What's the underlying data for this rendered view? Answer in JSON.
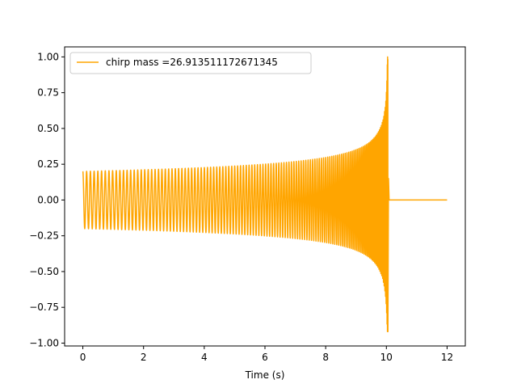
{
  "chart_data": {
    "type": "line",
    "title": "",
    "xlabel": "Time (s)",
    "ylabel": "",
    "xlim": [
      -0.6,
      12.6
    ],
    "ylim": [
      -1.02,
      1.07
    ],
    "x_ticks": [
      0,
      2,
      4,
      6,
      8,
      10,
      12
    ],
    "x_tick_labels": [
      "0",
      "2",
      "4",
      "6",
      "8",
      "10",
      "12"
    ],
    "y_ticks": [
      -1.0,
      -0.75,
      -0.5,
      -0.25,
      0.0,
      0.25,
      0.5,
      0.75,
      1.0
    ],
    "y_tick_labels": [
      "−1.00",
      "−0.75",
      "−0.50",
      "−0.25",
      "0.00",
      "0.25",
      "0.50",
      "0.75",
      "1.00"
    ],
    "grid": false,
    "legend_position": "top-left",
    "series": [
      {
        "name": "chirp mass =26.913511172671345",
        "color": "#ffa500",
        "signal": {
          "kind": "chirp",
          "t_start": 0,
          "t_merger": 10.05,
          "t_end": 12,
          "initial_amplitude": 0.2,
          "peak_amplitude": 1.0,
          "trough_amplitude": -0.92,
          "post_merger_value": 0.0
        }
      }
    ]
  }
}
